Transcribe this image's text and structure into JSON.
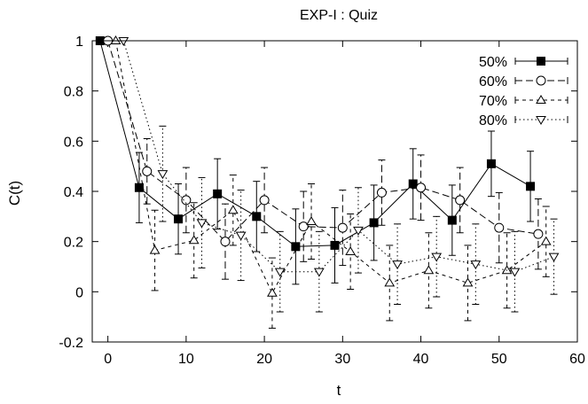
{
  "chart_data": {
    "type": "line",
    "title": "EXP-I : Quiz",
    "xlabel": "t",
    "ylabel": "C(t)",
    "xlim": [
      -2,
      60
    ],
    "ylim": [
      -0.2,
      1
    ],
    "xticks": [
      0,
      10,
      20,
      30,
      40,
      50,
      60
    ],
    "yticks": [
      -0.2,
      0,
      0.2,
      0.4,
      0.6,
      0.8,
      1
    ],
    "xtick_labels": [
      "0",
      "10",
      "20",
      "30",
      "40",
      "50",
      "60"
    ],
    "ytick_labels": [
      "-0.2",
      "0",
      "0.2",
      "0.4",
      "0.6",
      "0.8",
      "1"
    ],
    "grid": false,
    "legend_position": "top-right",
    "series": [
      {
        "name": "50%",
        "marker": "filled-square",
        "line_style": "solid",
        "points": [
          {
            "x": -1,
            "y": 1.0,
            "err": 0.0
          },
          {
            "x": 4,
            "y": 0.415,
            "err": 0.14
          },
          {
            "x": 9,
            "y": 0.29,
            "err": 0.14
          },
          {
            "x": 14,
            "y": 0.39,
            "err": 0.14
          },
          {
            "x": 19,
            "y": 0.3,
            "err": 0.14
          },
          {
            "x": 24,
            "y": 0.18,
            "err": 0.15
          },
          {
            "x": 29,
            "y": 0.185,
            "err": 0.15
          },
          {
            "x": 34,
            "y": 0.275,
            "err": 0.15
          },
          {
            "x": 39,
            "y": 0.43,
            "err": 0.14
          },
          {
            "x": 44,
            "y": 0.285,
            "err": 0.14
          },
          {
            "x": 49,
            "y": 0.51,
            "err": 0.13
          },
          {
            "x": 54,
            "y": 0.42,
            "err": 0.14
          }
        ]
      },
      {
        "name": "60%",
        "marker": "open-circle",
        "line_style": "dashed",
        "points": [
          {
            "x": 0,
            "y": 1.0,
            "err": 0.0
          },
          {
            "x": 5,
            "y": 0.48,
            "err": 0.13
          },
          {
            "x": 10,
            "y": 0.365,
            "err": 0.13
          },
          {
            "x": 15,
            "y": 0.2,
            "err": 0.15
          },
          {
            "x": 20,
            "y": 0.365,
            "err": 0.13
          },
          {
            "x": 25,
            "y": 0.26,
            "err": 0.14
          },
          {
            "x": 30,
            "y": 0.255,
            "err": 0.15
          },
          {
            "x": 35,
            "y": 0.395,
            "err": 0.13
          },
          {
            "x": 40,
            "y": 0.415,
            "err": 0.13
          },
          {
            "x": 45,
            "y": 0.365,
            "err": 0.13
          },
          {
            "x": 50,
            "y": 0.255,
            "err": 0.14
          },
          {
            "x": 55,
            "y": 0.23,
            "err": 0.14
          }
        ]
      },
      {
        "name": "70%",
        "marker": "open-triangle-up",
        "line_style": "short-dashed",
        "points": [
          {
            "x": 1,
            "y": 1.0,
            "err": 0.0
          },
          {
            "x": 6,
            "y": 0.165,
            "err": 0.16
          },
          {
            "x": 11,
            "y": 0.205,
            "err": 0.15
          },
          {
            "x": 16,
            "y": 0.325,
            "err": 0.14
          },
          {
            "x": 21,
            "y": -0.005,
            "err": 0.14
          },
          {
            "x": 26,
            "y": 0.28,
            "err": 0.15
          },
          {
            "x": 31,
            "y": 0.16,
            "err": 0.15
          },
          {
            "x": 36,
            "y": 0.035,
            "err": 0.15
          },
          {
            "x": 41,
            "y": 0.085,
            "err": 0.15
          },
          {
            "x": 46,
            "y": 0.035,
            "err": 0.15
          },
          {
            "x": 51,
            "y": 0.085,
            "err": 0.15
          },
          {
            "x": 56,
            "y": 0.2,
            "err": 0.14
          }
        ]
      },
      {
        "name": "80%",
        "marker": "open-triangle-down",
        "line_style": "dotted",
        "points": [
          {
            "x": 2,
            "y": 1.0,
            "err": 0.0
          },
          {
            "x": 7,
            "y": 0.47,
            "err": 0.19
          },
          {
            "x": 12,
            "y": 0.275,
            "err": 0.18
          },
          {
            "x": 17,
            "y": 0.225,
            "err": 0.18
          },
          {
            "x": 22,
            "y": 0.08,
            "err": 0.16
          },
          {
            "x": 27,
            "y": 0.08,
            "err": 0.16
          },
          {
            "x": 32,
            "y": 0.245,
            "err": 0.17
          },
          {
            "x": 37,
            "y": 0.11,
            "err": 0.16
          },
          {
            "x": 42,
            "y": 0.14,
            "err": 0.16
          },
          {
            "x": 47,
            "y": 0.11,
            "err": 0.16
          },
          {
            "x": 52,
            "y": 0.08,
            "err": 0.16
          },
          {
            "x": 57,
            "y": 0.14,
            "err": 0.15
          }
        ]
      }
    ]
  }
}
